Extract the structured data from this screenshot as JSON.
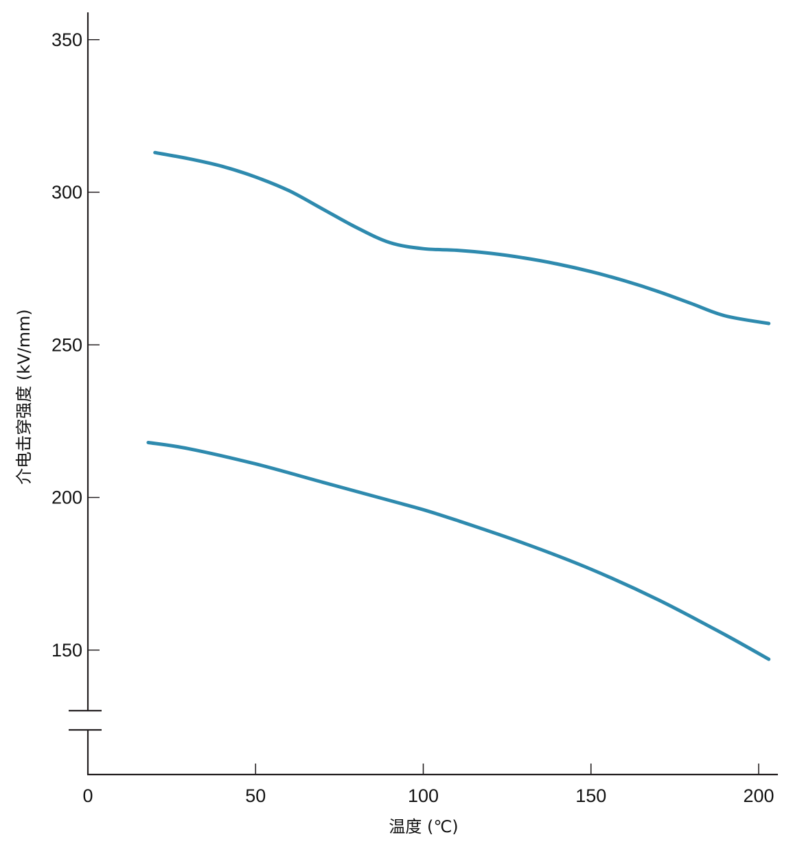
{
  "chart_data": {
    "type": "line",
    "title": "",
    "xlabel": "温度 (℃)",
    "ylabel": "介电击穿强度 (kV/mm)",
    "xlim": [
      0,
      205
    ],
    "ylim": [
      120,
      360
    ],
    "x_ticks": [
      0,
      50,
      100,
      150,
      200
    ],
    "y_ticks": [
      150,
      200,
      250,
      300,
      350
    ],
    "y_axis_break": true,
    "grid": false,
    "legend": "none",
    "line_color": "#2e8aae",
    "series": [
      {
        "x": [
          20,
          30,
          40,
          50,
          60,
          70,
          80,
          90,
          100,
          110,
          120,
          130,
          140,
          150,
          160,
          170,
          180,
          190,
          203
        ],
        "values": [
          313,
          311,
          308.5,
          305,
          300.5,
          294.5,
          288.5,
          283.5,
          281.5,
          281,
          280,
          278.5,
          276.5,
          274,
          271,
          267.5,
          263.5,
          259.5,
          257
        ]
      },
      {
        "x": [
          18,
          30,
          50,
          70,
          90,
          100,
          110,
          130,
          150,
          170,
          190,
          203
        ],
        "values": [
          218,
          216,
          211,
          205,
          199,
          196,
          192.5,
          185,
          176.5,
          166.5,
          155,
          147
        ]
      }
    ]
  }
}
